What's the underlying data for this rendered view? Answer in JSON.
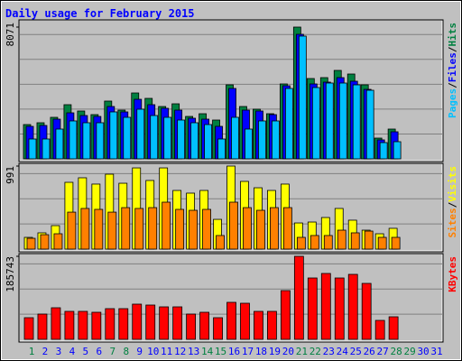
{
  "chart_data": {
    "type": "bar",
    "title": "Daily usage for February 2015",
    "categories": [
      "1",
      "2",
      "3",
      "4",
      "5",
      "6",
      "7",
      "8",
      "9",
      "10",
      "11",
      "12",
      "13",
      "14",
      "15",
      "16",
      "17",
      "18",
      "19",
      "20",
      "21",
      "22",
      "23",
      "24",
      "25",
      "26",
      "27",
      "28",
      "29",
      "30",
      "31"
    ],
    "category_color": "#0000ff",
    "weekend_color": "#008040",
    "weekend_categories": [
      "1",
      "7",
      "8",
      "14",
      "15",
      "21",
      "22",
      "28",
      "29"
    ],
    "legend_separator": "/",
    "panels": [
      {
        "ylim": [
          0,
          8071
        ],
        "yticks": [
          8071
        ],
        "series": [
          {
            "name": "Hits",
            "color": "#008040",
            "values": [
              2100,
              2211,
              2543,
              3317,
              2930,
              2709,
              3538,
              2985,
              4035,
              3704,
              3206,
              3372,
              2598,
              2764,
              2377,
              4533,
              3206,
              3040,
              2764,
              4588,
              8071,
              4920,
              4975,
              5417,
              5196,
              4533,
              1271,
              1824,
              null,
              null,
              null
            ]
          },
          {
            "name": "Files",
            "color": "#0000ff",
            "values": [
              1990,
              2045,
              2432,
              2819,
              2653,
              2598,
              3206,
              2875,
              3648,
              3317,
              3096,
              2985,
              2488,
              2432,
              1990,
              4312,
              2985,
              2930,
              2709,
              4478,
              7629,
              4588,
              4699,
              4975,
              4754,
              4257,
              1161,
              1658,
              null,
              null,
              null
            ]
          },
          {
            "name": "Pages",
            "color": "#00c0ff",
            "values": [
              1216,
              1216,
              1824,
              2322,
              2211,
              2211,
              2875,
              2543,
              3040,
              2653,
              2543,
              2377,
              2211,
              2100,
              1216,
              2543,
              1824,
              2322,
              2322,
              4312,
              7519,
              4367,
              4643,
              4643,
              4533,
              4201,
              995,
              1050,
              null,
              null,
              null
            ]
          }
        ]
      },
      {
        "ylim": [
          0,
          991
        ],
        "yticks": [
          991
        ],
        "series": [
          {
            "name": "Visits",
            "color": "#ffff00",
            "values": [
              140,
              194,
              280,
              797,
              851,
              776,
              894,
              786,
              969,
              819,
              969,
              700,
              668,
              700,
              355,
              991,
              808,
              732,
              700,
              776,
              312,
              323,
              377,
              485,
              345,
              226,
              183,
              248,
              null,
              null,
              null
            ]
          },
          {
            "name": "Sites",
            "color": "#ff8000",
            "values": [
              129,
              172,
              183,
              441,
              485,
              474,
              441,
              495,
              485,
              495,
              560,
              474,
              463,
              474,
              162,
              560,
              495,
              463,
              495,
              495,
              140,
              162,
              162,
              226,
              194,
              215,
              140,
              140,
              null,
              null,
              null
            ]
          }
        ]
      },
      {
        "ylim": [
          0,
          185743
        ],
        "yticks": [
          185743
        ],
        "series": [
          {
            "name": "KBytes",
            "color": "#ff0000",
            "values": [
              48455,
              56531,
              70664,
              62587,
              62587,
              60568,
              68645,
              68645,
              78740,
              76721,
              72683,
              72683,
              56531,
              60568,
              48455,
              82778,
              80759,
              62587,
              62587,
              109025,
              185743,
              137286,
              147381,
              137286,
              145362,
              125173,
              42397,
              50473,
              null,
              null,
              null
            ]
          }
        ]
      }
    ]
  }
}
